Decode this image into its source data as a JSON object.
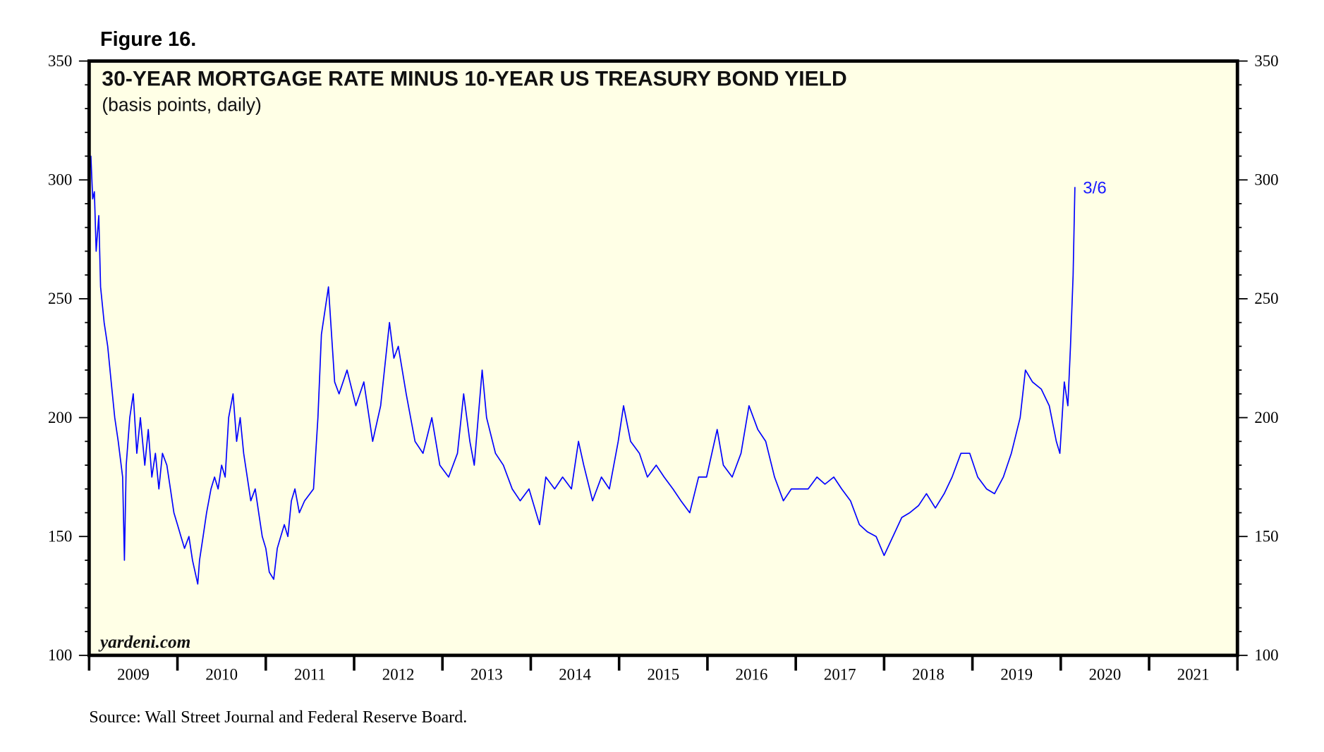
{
  "figure_label": "Figure 16.",
  "source": "Source: Wall Street Journal and Federal Reserve Board.",
  "watermark": "yardeni.com",
  "colors": {
    "line": "#0000ff",
    "plot_background": "#ffffe6",
    "frame": "#000000"
  },
  "chart_data": {
    "type": "line",
    "title": "30-YEAR MORTGAGE RATE MINUS 10-YEAR US TREASURY BOND YIELD",
    "subtitle": "(basis points, daily)",
    "xlabel": "",
    "ylabel": "",
    "xlim": [
      2009,
      2022
    ],
    "ylim": [
      100,
      350
    ],
    "y_ticks": [
      100,
      150,
      200,
      250,
      300,
      350
    ],
    "y_axis_both_sides": true,
    "x_tick_labels": [
      "2009",
      "2010",
      "2011",
      "2012",
      "2013",
      "2014",
      "2015",
      "2016",
      "2017",
      "2018",
      "2019",
      "2020",
      "2021"
    ],
    "grid": false,
    "end_annotation": "3/6",
    "series": [
      {
        "x": [
          2009.0,
          2009.02,
          2009.04,
          2009.06,
          2009.08,
          2009.11,
          2009.13,
          2009.17,
          2009.21,
          2009.25,
          2009.29,
          2009.33,
          2009.38,
          2009.4,
          2009.42,
          2009.46,
          2009.5,
          2009.54,
          2009.58,
          2009.63,
          2009.67,
          2009.71,
          2009.75,
          2009.79,
          2009.83,
          2009.88,
          2009.92,
          2009.96,
          2010.0,
          2010.04,
          2010.08,
          2010.13,
          2010.17,
          2010.23,
          2010.25,
          2010.29,
          2010.33,
          2010.38,
          2010.42,
          2010.46,
          2010.5,
          2010.54,
          2010.58,
          2010.63,
          2010.67,
          2010.71,
          2010.75,
          2010.79,
          2010.83,
          2010.88,
          2010.92,
          2010.96,
          2011.0,
          2011.04,
          2011.09,
          2011.13,
          2011.17,
          2011.21,
          2011.25,
          2011.29,
          2011.33,
          2011.38,
          2011.44,
          2011.54,
          2011.59,
          2011.63,
          2011.71,
          2011.78,
          2011.83,
          2011.92,
          2012.02,
          2012.11,
          2012.21,
          2012.3,
          2012.4,
          2012.45,
          2012.5,
          2012.59,
          2012.69,
          2012.78,
          2012.88,
          2012.97,
          2013.07,
          2013.17,
          2013.24,
          2013.31,
          2013.36,
          2013.45,
          2013.5,
          2013.6,
          2013.69,
          2013.79,
          2013.88,
          2013.98,
          2014.1,
          2014.17,
          2014.27,
          2014.36,
          2014.46,
          2014.54,
          2014.6,
          2014.7,
          2014.8,
          2014.89,
          2014.99,
          2015.05,
          2015.13,
          2015.23,
          2015.32,
          2015.42,
          2015.51,
          2015.61,
          2015.7,
          2015.8,
          2015.9,
          2015.99,
          2016.11,
          2016.18,
          2016.28,
          2016.38,
          2016.47,
          2016.57,
          2016.66,
          2016.76,
          2016.86,
          2016.95,
          2017.05,
          2017.14,
          2017.24,
          2017.33,
          2017.43,
          2017.52,
          2017.62,
          2017.72,
          2017.81,
          2017.91,
          2018.0,
          2018.1,
          2018.2,
          2018.29,
          2018.39,
          2018.48,
          2018.58,
          2018.68,
          2018.77,
          2018.87,
          2018.97,
          2019.06,
          2019.16,
          2019.25,
          2019.35,
          2019.44,
          2019.54,
          2019.6,
          2019.68,
          2019.78,
          2019.87,
          2019.95,
          2019.99,
          2020.04,
          2020.08,
          2020.11,
          2020.14,
          2020.16
        ],
        "values": [
          300,
          310,
          292,
          295,
          270,
          285,
          255,
          240,
          230,
          215,
          200,
          190,
          175,
          140,
          180,
          200,
          210,
          185,
          200,
          180,
          195,
          175,
          185,
          170,
          185,
          180,
          170,
          160,
          155,
          150,
          145,
          150,
          140,
          130,
          140,
          150,
          160,
          170,
          175,
          170,
          180,
          175,
          200,
          210,
          190,
          200,
          185,
          175,
          165,
          170,
          160,
          150,
          145,
          135,
          132,
          145,
          150,
          155,
          150,
          165,
          170,
          160,
          165,
          170,
          200,
          235,
          255,
          215,
          210,
          220,
          205,
          215,
          190,
          205,
          240,
          225,
          230,
          210,
          190,
          185,
          200,
          180,
          175,
          185,
          210,
          190,
          180,
          220,
          200,
          185,
          180,
          170,
          165,
          170,
          155,
          175,
          170,
          175,
          170,
          190,
          180,
          165,
          175,
          170,
          190,
          205,
          190,
          185,
          175,
          180,
          175,
          170,
          165,
          160,
          175,
          175,
          195,
          180,
          175,
          185,
          205,
          195,
          190,
          175,
          165,
          170,
          170,
          170,
          175,
          172,
          175,
          170,
          165,
          155,
          152,
          150,
          142,
          150,
          158,
          160,
          163,
          168,
          162,
          168,
          175,
          185,
          185,
          175,
          170,
          168,
          175,
          185,
          200,
          220,
          215,
          212,
          205,
          190,
          185,
          215,
          205,
          230,
          260,
          297
        ]
      }
    ]
  }
}
